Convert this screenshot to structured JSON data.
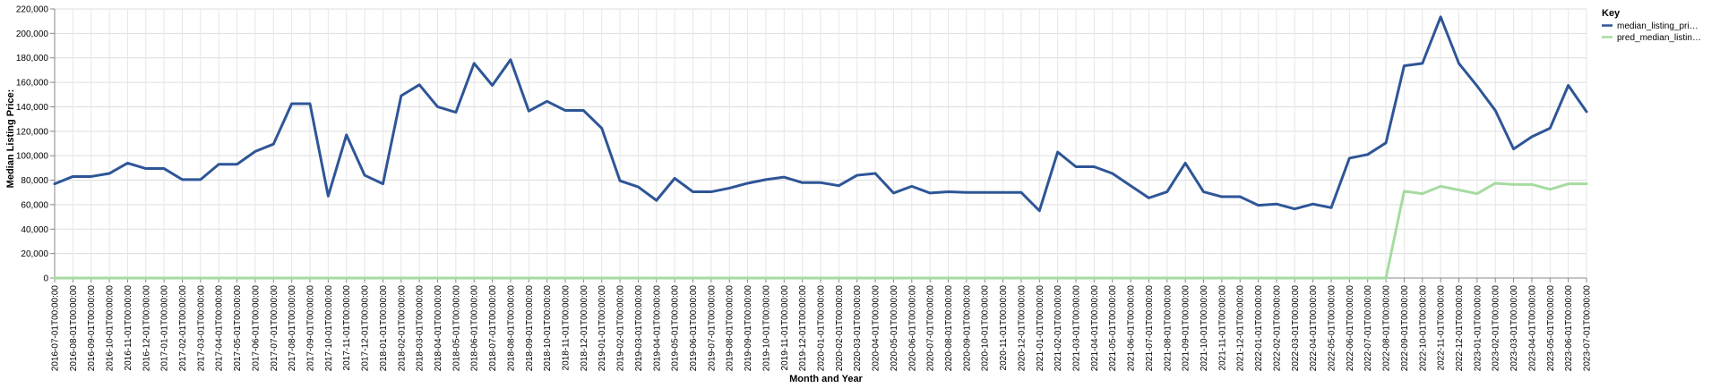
{
  "chart_data": {
    "type": "line",
    "xlabel": "Month and Year",
    "ylabel": "Median Listing Price:",
    "ylim": [
      0,
      220000
    ],
    "y_ticks": [
      "0",
      "20,000",
      "40,000",
      "60,000",
      "80,000",
      "100,000",
      "120,000",
      "140,000",
      "160,000",
      "180,000",
      "200,000",
      "220,000"
    ],
    "grid": true,
    "legend": {
      "title": "Key",
      "placement": "top-right",
      "entries": [
        "median_listing_pri…",
        "pred_median_listin…"
      ]
    },
    "categories": [
      "2016-07-01T00:00:00",
      "2016-08-01T00:00:00",
      "2016-09-01T00:00:00",
      "2016-10-01T00:00:00",
      "2016-11-01T00:00:00",
      "2016-12-01T00:00:00",
      "2017-01-01T00:00:00",
      "2017-02-01T00:00:00",
      "2017-03-01T00:00:00",
      "2017-04-01T00:00:00",
      "2017-05-01T00:00:00",
      "2017-06-01T00:00:00",
      "2017-07-01T00:00:00",
      "2017-08-01T00:00:00",
      "2017-09-01T00:00:00",
      "2017-10-01T00:00:00",
      "2017-11-01T00:00:00",
      "2017-12-01T00:00:00",
      "2018-01-01T00:00:00",
      "2018-02-01T00:00:00",
      "2018-03-01T00:00:00",
      "2018-04-01T00:00:00",
      "2018-05-01T00:00:00",
      "2018-06-01T00:00:00",
      "2018-07-01T00:00:00",
      "2018-08-01T00:00:00",
      "2018-09-01T00:00:00",
      "2018-10-01T00:00:00",
      "2018-11-01T00:00:00",
      "2018-12-01T00:00:00",
      "2019-01-01T00:00:00",
      "2019-02-01T00:00:00",
      "2019-03-01T00:00:00",
      "2019-04-01T00:00:00",
      "2019-05-01T00:00:00",
      "2019-06-01T00:00:00",
      "2019-07-01T00:00:00",
      "2019-08-01T00:00:00",
      "2019-09-01T00:00:00",
      "2019-10-01T00:00:00",
      "2019-11-01T00:00:00",
      "2019-12-01T00:00:00",
      "2020-01-01T00:00:00",
      "2020-02-01T00:00:00",
      "2020-03-01T00:00:00",
      "2020-04-01T00:00:00",
      "2020-05-01T00:00:00",
      "2020-06-01T00:00:00",
      "2020-07-01T00:00:00",
      "2020-08-01T00:00:00",
      "2020-09-01T00:00:00",
      "2020-10-01T00:00:00",
      "2020-11-01T00:00:00",
      "2020-12-01T00:00:00",
      "2021-01-01T00:00:00",
      "2021-02-01T00:00:00",
      "2021-03-01T00:00:00",
      "2021-04-01T00:00:00",
      "2021-05-01T00:00:00",
      "2021-06-01T00:00:00",
      "2021-07-01T00:00:00",
      "2021-08-01T00:00:00",
      "2021-09-01T00:00:00",
      "2021-10-01T00:00:00",
      "2021-11-01T00:00:00",
      "2021-12-01T00:00:00",
      "2022-01-01T00:00:00",
      "2022-02-01T00:00:00",
      "2022-03-01T00:00:00",
      "2022-04-01T00:00:00",
      "2022-05-01T00:00:00",
      "2022-06-01T00:00:00",
      "2022-07-01T00:00:00",
      "2022-08-01T00:00:00",
      "2022-09-01T00:00:00",
      "2022-10-01T00:00:00",
      "2022-11-01T00:00:00",
      "2022-12-01T00:00:00",
      "2023-01-01T00:00:00",
      "2023-02-01T00:00:00",
      "2023-03-01T00:00:00",
      "2023-04-01T00:00:00",
      "2023-05-01T00:00:00",
      "2023-06-01T00:00:00",
      "2023-07-01T00:00:00"
    ],
    "series": [
      {
        "name": "median_listing_pri…",
        "color": "#2e5597",
        "values": [
          77000,
          83000,
          83000,
          85500,
          94000,
          89500,
          89500,
          80500,
          80500,
          93000,
          93000,
          103500,
          109500,
          142500,
          142500,
          67000,
          117000,
          84000,
          77000,
          149000,
          158000,
          140000,
          135500,
          175500,
          157500,
          178500,
          136500,
          144500,
          137000,
          137000,
          122500,
          79500,
          74500,
          63500,
          81500,
          70500,
          70500,
          73500,
          77500,
          80500,
          82500,
          78000,
          78000,
          75500,
          84000,
          85500,
          69500,
          75000,
          69500,
          70500,
          70000,
          70000,
          70000,
          70000,
          55000,
          103000,
          91000,
          91000,
          85500,
          75500,
          65500,
          70500,
          94000,
          70500,
          66500,
          66500,
          59500,
          60500,
          56500,
          60500,
          57500,
          98000,
          101000,
          110500,
          173500,
          175500,
          213500,
          175500,
          157000,
          137000,
          105500,
          115500,
          122500,
          157500,
          136000
        ]
      },
      {
        "name": "pred_median_listin…",
        "color": "#a6dba0",
        "values": [
          0,
          0,
          0,
          0,
          0,
          0,
          0,
          0,
          0,
          0,
          0,
          0,
          0,
          0,
          0,
          0,
          0,
          0,
          0,
          0,
          0,
          0,
          0,
          0,
          0,
          0,
          0,
          0,
          0,
          0,
          0,
          0,
          0,
          0,
          0,
          0,
          0,
          0,
          0,
          0,
          0,
          0,
          0,
          0,
          0,
          0,
          0,
          0,
          0,
          0,
          0,
          0,
          0,
          0,
          0,
          0,
          0,
          0,
          0,
          0,
          0,
          0,
          0,
          0,
          0,
          0,
          0,
          0,
          0,
          0,
          0,
          0,
          0,
          0,
          71000,
          69000,
          75000,
          72000,
          69000,
          77500,
          76500,
          76500,
          72500,
          77000,
          77000
        ]
      }
    ]
  }
}
